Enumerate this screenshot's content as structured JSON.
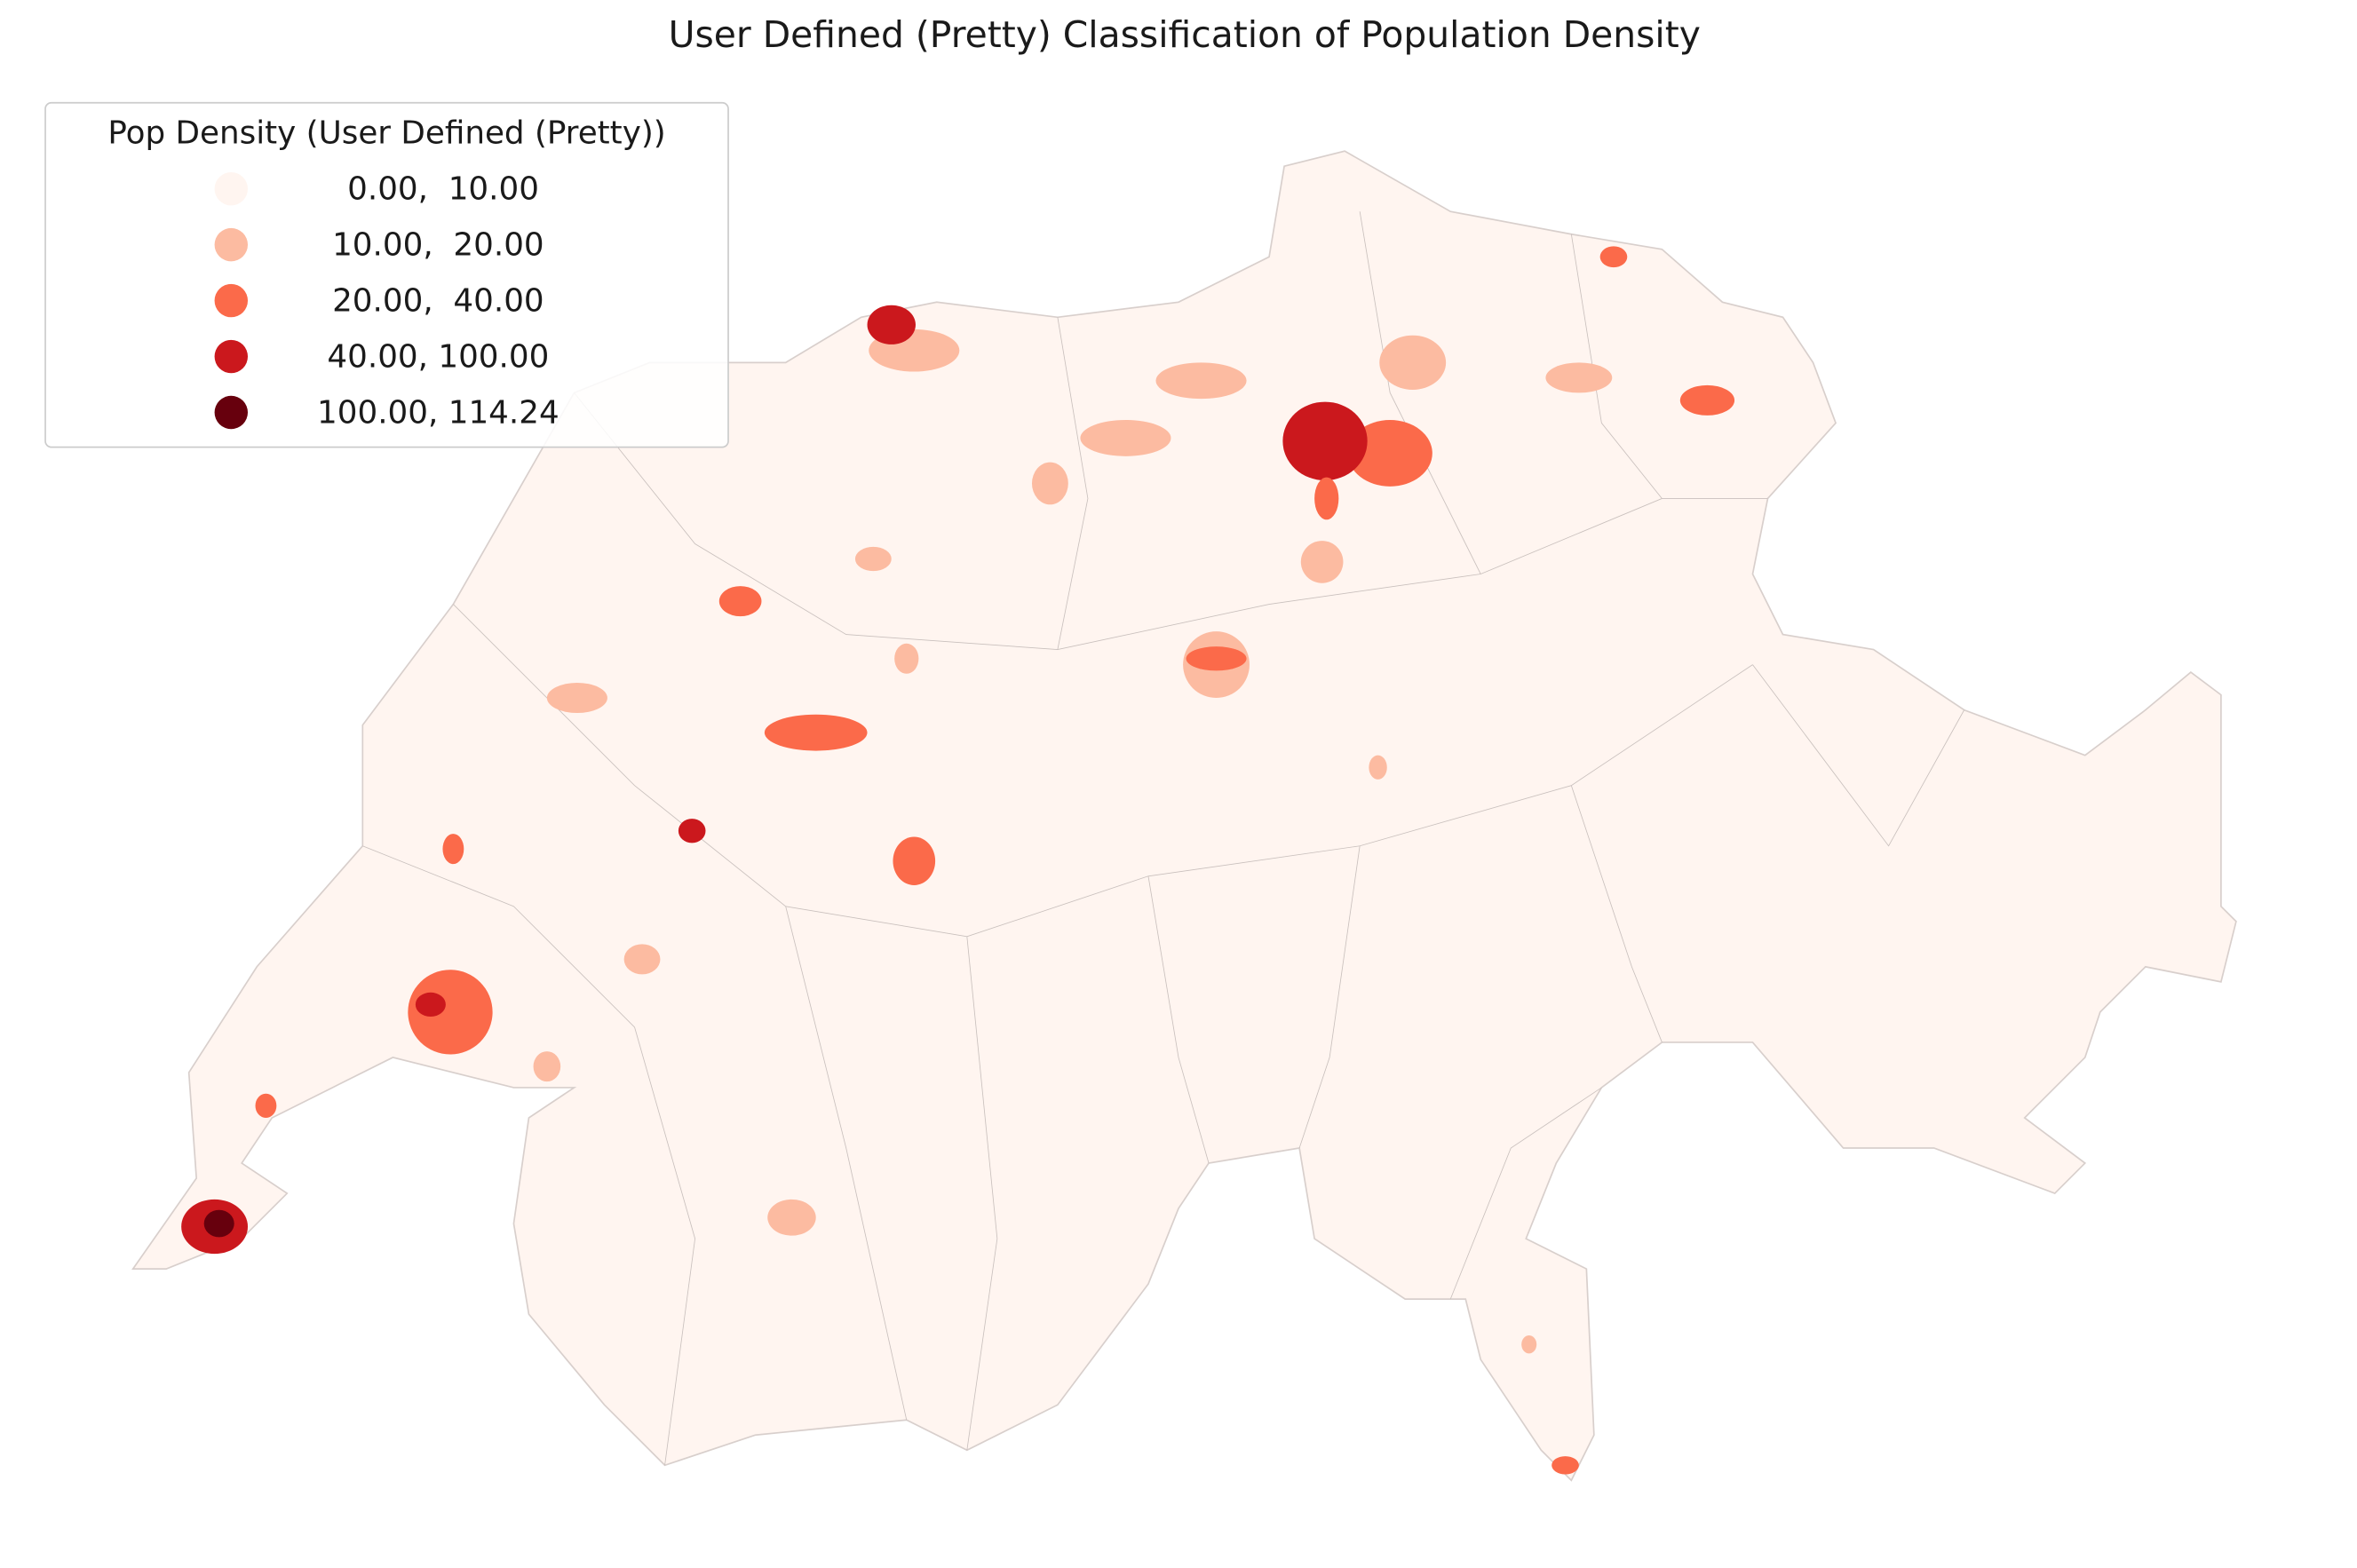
{
  "title": "User Defined (Pretty) Classification of Population Density",
  "legend": {
    "title": "Pop Density (User Defined (Pretty))",
    "items": [
      {
        "label": " 0.00,  10.00",
        "color": "#fff5f0"
      },
      {
        "label": "10.00,  20.00",
        "color": "#fcbba1"
      },
      {
        "label": "20.00,  40.00",
        "color": "#fb6a4a"
      },
      {
        "label": "40.00, 100.00",
        "color": "#cb181d"
      },
      {
        "label": "100.00, 114.24",
        "color": "#67000d"
      }
    ]
  }
}
